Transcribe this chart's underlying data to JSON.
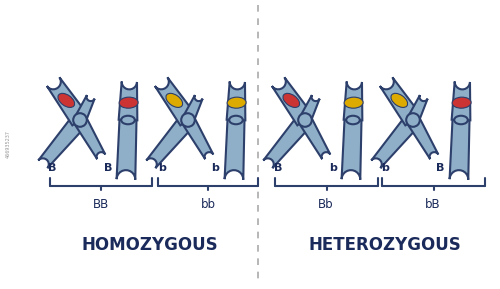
{
  "background_color": "#ffffff",
  "chromosome_fill": "#8fafc8",
  "chromosome_edge": "#2d3f6b",
  "chromosome_fill_light": "#b0c8dc",
  "allele_red": "#cc3333",
  "allele_yellow": "#ddaa00",
  "text_color": "#1a2a5a",
  "title_left": "HOMOZYGOUS",
  "title_right": "HETEROZYGOUS",
  "watermark": "466935237"
}
